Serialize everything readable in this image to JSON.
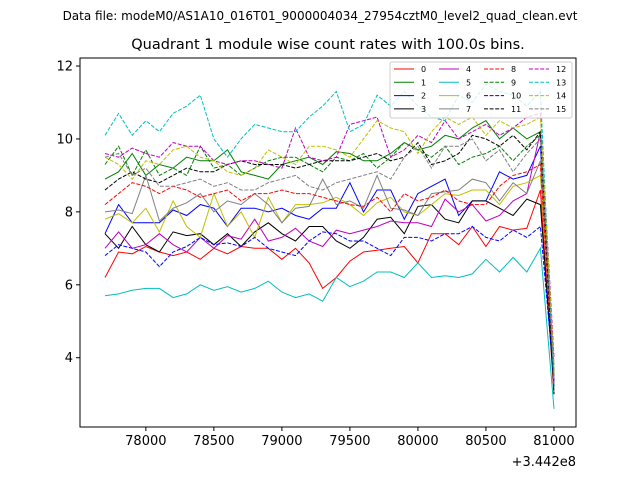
{
  "chart_data": {
    "type": "line",
    "suptitle": "Data file: modeM0/AS1A10_016T01_9000004034_27954cztM0_level2_quad_clean.evt",
    "title": "Quadrant 1 module wise count rates with 100.0s bins.",
    "xlabel": "",
    "ylabel": "",
    "x_offset_label": "+3.442e8",
    "xlim": [
      77516,
      81162
    ],
    "ylim": [
      2.1,
      12.22
    ],
    "xticks": [
      78000,
      78500,
      79000,
      79500,
      80000,
      80500,
      81000
    ],
    "xtick_labels": [
      "78000",
      "78500",
      "79000",
      "79500",
      "80000",
      "80500",
      "81000"
    ],
    "yticks": [
      4,
      6,
      8,
      10,
      12
    ],
    "ytick_labels": [
      "4",
      "6",
      "8",
      "10",
      "12"
    ],
    "grid": false,
    "legend_placement": "top-right",
    "x": [
      77700,
      77800,
      77900,
      78000,
      78100,
      78200,
      78300,
      78400,
      78500,
      78600,
      78700,
      78800,
      78900,
      79000,
      79100,
      79200,
      79300,
      79400,
      79500,
      79600,
      79700,
      79800,
      79900,
      80000,
      80100,
      80200,
      80300,
      80400,
      80500,
      80600,
      80700,
      80800,
      80900,
      81000
    ],
    "series": [
      {
        "name": "0",
        "color": "#ff0000",
        "dash": false,
        "values": [
          6.2,
          6.9,
          6.85,
          7.05,
          6.9,
          6.8,
          6.9,
          6.7,
          7.0,
          6.85,
          7.05,
          7.0,
          7.0,
          6.7,
          7.0,
          6.6,
          5.9,
          6.2,
          6.65,
          6.9,
          6.95,
          7.0,
          7.05,
          6.6,
          7.4,
          7.4,
          7.1,
          7.6,
          7.05,
          7.6,
          7.5,
          7.55,
          8.6,
          3.0
        ]
      },
      {
        "name": "1",
        "color": "#008000",
        "dash": false,
        "values": [
          8.9,
          9.1,
          9.6,
          9.0,
          9.3,
          9.2,
          9.5,
          9.4,
          9.4,
          9.7,
          9.1,
          9.0,
          8.9,
          9.3,
          9.4,
          9.5,
          9.3,
          9.65,
          9.6,
          9.4,
          9.4,
          9.6,
          9.9,
          9.7,
          9.8,
          10.1,
          10.0,
          10.3,
          10.5,
          10.0,
          10.3,
          10.0,
          10.2,
          3.5
        ]
      },
      {
        "name": "2",
        "color": "#0000ff",
        "dash": false,
        "values": [
          7.4,
          8.2,
          7.7,
          7.7,
          7.7,
          8.05,
          7.9,
          8.2,
          8.1,
          7.6,
          8.1,
          8.1,
          8.0,
          8.1,
          7.9,
          7.8,
          8.1,
          8.1,
          8.8,
          8.0,
          8.6,
          8.6,
          7.8,
          8.5,
          8.7,
          8.9,
          7.9,
          8.3,
          8.3,
          9.1,
          8.9,
          9.0,
          9.8,
          3.3
        ]
      },
      {
        "name": "3",
        "color": "#000000",
        "dash": false,
        "values": [
          7.4,
          7.0,
          7.6,
          7.1,
          6.9,
          7.45,
          7.35,
          7.4,
          7.1,
          7.4,
          7.05,
          7.45,
          7.7,
          7.4,
          7.2,
          7.6,
          7.6,
          7.2,
          7.0,
          7.3,
          7.8,
          7.85,
          7.4,
          8.15,
          8.2,
          7.8,
          7.7,
          8.3,
          8.3,
          8.1,
          7.9,
          8.35,
          8.2,
          3.2
        ]
      },
      {
        "name": "4",
        "color": "#bf00bf",
        "dash": false,
        "values": [
          7.0,
          7.45,
          7.0,
          7.1,
          7.4,
          7.1,
          6.9,
          7.3,
          7.0,
          7.35,
          7.25,
          7.8,
          7.2,
          7.3,
          7.55,
          7.2,
          7.05,
          7.5,
          7.4,
          7.5,
          7.6,
          7.75,
          7.7,
          7.7,
          7.6,
          8.35,
          8.0,
          8.2,
          7.75,
          7.9,
          8.3,
          8.5,
          10.2,
          3.3
        ]
      },
      {
        "name": "5",
        "color": "#00bfbf",
        "dash": false,
        "values": [
          5.7,
          5.75,
          5.85,
          5.9,
          5.9,
          5.65,
          5.75,
          6.0,
          5.85,
          5.95,
          5.8,
          5.9,
          6.1,
          5.8,
          5.65,
          5.75,
          5.55,
          6.2,
          5.95,
          6.1,
          6.35,
          6.35,
          6.2,
          6.6,
          6.2,
          6.25,
          6.2,
          6.3,
          6.7,
          6.35,
          6.75,
          6.35,
          7.0,
          2.6
        ]
      },
      {
        "name": "6",
        "color": "#bfbf00",
        "dash": false,
        "values": [
          7.8,
          7.95,
          7.7,
          8.1,
          7.45,
          8.3,
          7.6,
          7.3,
          8.5,
          7.6,
          8.0,
          7.3,
          8.4,
          7.7,
          8.2,
          8.2,
          8.25,
          8.4,
          8.2,
          7.9,
          8.25,
          8.4,
          8.0,
          7.9,
          8.2,
          8.5,
          8.45,
          8.6,
          8.6,
          8.2,
          8.7,
          8.8,
          9.0,
          3.6
        ]
      },
      {
        "name": "7",
        "color": "#808080",
        "dash": false,
        "values": [
          8.0,
          8.05,
          7.95,
          9.0,
          7.75,
          8.1,
          8.25,
          8.5,
          8.0,
          8.3,
          8.2,
          8.5,
          8.2,
          7.7,
          8.1,
          8.15,
          8.9,
          8.2,
          8.3,
          8.1,
          9.0,
          8.1,
          8.05,
          7.9,
          8.5,
          8.55,
          8.6,
          8.9,
          8.8,
          8.3,
          8.8,
          8.5,
          9.4,
          3.8
        ]
      },
      {
        "name": "8",
        "color": "#ff0000",
        "dash": true,
        "values": [
          8.2,
          8.5,
          8.8,
          8.7,
          8.5,
          8.7,
          8.6,
          8.4,
          8.5,
          8.6,
          8.3,
          8.5,
          8.5,
          8.6,
          8.5,
          8.5,
          8.4,
          8.3,
          8.2,
          8.15,
          8.4,
          8.0,
          8.5,
          8.3,
          8.4,
          8.6,
          8.3,
          8.2,
          8.2,
          8.7,
          9.0,
          9.1,
          9.3,
          3.2
        ]
      },
      {
        "name": "9",
        "color": "#008000",
        "dash": true,
        "values": [
          9.3,
          9.8,
          9.0,
          9.7,
          9.0,
          9.2,
          9.0,
          9.8,
          9.2,
          9.3,
          9.0,
          9.2,
          9.4,
          9.5,
          9.5,
          9.3,
          9.1,
          9.5,
          9.4,
          9.6,
          9.2,
          9.5,
          9.9,
          9.7,
          9.5,
          9.8,
          9.3,
          9.5,
          9.6,
          9.8,
          9.4,
          9.8,
          10.1,
          3.6
        ]
      },
      {
        "name": "10",
        "color": "#0000ff",
        "dash": true,
        "values": [
          6.8,
          7.1,
          7.0,
          6.9,
          6.5,
          6.9,
          7.05,
          7.3,
          7.1,
          7.15,
          7.05,
          7.3,
          7.0,
          6.9,
          6.8,
          7.2,
          7.45,
          7.4,
          7.2,
          7.2,
          7.0,
          6.8,
          7.3,
          7.3,
          7.2,
          7.4,
          7.4,
          7.6,
          7.3,
          7.2,
          7.5,
          7.3,
          7.6,
          3.4
        ]
      },
      {
        "name": "11",
        "color": "#000000",
        "dash": true,
        "values": [
          8.6,
          8.9,
          9.1,
          8.9,
          8.8,
          9.0,
          9.2,
          9.1,
          9.1,
          9.3,
          9.4,
          9.3,
          9.3,
          9.3,
          9.2,
          9.3,
          9.4,
          9.4,
          9.4,
          9.5,
          9.6,
          9.4,
          9.5,
          9.9,
          9.3,
          9.4,
          9.6,
          10.1,
          10.0,
          9.8,
          10.1,
          9.7,
          10.2,
          3.0
        ]
      },
      {
        "name": "12",
        "color": "#bf00bf",
        "dash": true,
        "values": [
          9.6,
          9.5,
          9.75,
          9.6,
          9.5,
          9.9,
          9.8,
          9.8,
          9.4,
          9.3,
          9.4,
          9.4,
          9.3,
          9.2,
          10.3,
          9.5,
          9.4,
          9.5,
          10.4,
          10.5,
          10.6,
          9.5,
          9.7,
          10.1,
          9.9,
          10.5,
          10.0,
          10.2,
          10.4,
          10.1,
          10.3,
          10.6,
          10.7,
          4.0
        ]
      },
      {
        "name": "13",
        "color": "#00bfbf",
        "dash": true,
        "values": [
          10.1,
          10.7,
          10.1,
          10.5,
          10.2,
          10.7,
          10.9,
          11.2,
          10.0,
          9.5,
          10.0,
          10.4,
          10.3,
          10.2,
          10.2,
          10.6,
          10.9,
          11.3,
          10.2,
          10.4,
          11.2,
          10.9,
          11.3,
          10.9,
          10.6,
          10.5,
          11.2,
          11.0,
          11.5,
          11.3,
          11.2,
          10.9,
          11.3,
          3.2
        ]
      },
      {
        "name": "14",
        "color": "#bfbf00",
        "dash": true,
        "values": [
          9.5,
          9.3,
          8.9,
          9.4,
          9.3,
          9.7,
          9.8,
          9.5,
          9.4,
          9.1,
          9.0,
          9.2,
          9.7,
          9.5,
          9.3,
          9.8,
          9.8,
          9.7,
          9.5,
          10.0,
          10.5,
          10.3,
          10.2,
          9.6,
          10.2,
          10.6,
          10.4,
          10.6,
          10.1,
          10.5,
          10.3,
          10.4,
          10.6,
          3.8
        ]
      },
      {
        "name": "15",
        "color": "#808080",
        "dash": true,
        "values": [
          9.5,
          9.6,
          9.0,
          9.2,
          8.7,
          8.7,
          8.8,
          8.9,
          8.7,
          8.8,
          8.6,
          8.6,
          8.8,
          8.9,
          9.0,
          8.7,
          8.6,
          8.8,
          8.9,
          9.0,
          9.1,
          8.9,
          9.5,
          9.8,
          9.2,
          9.8,
          9.8,
          10.0,
          9.4,
          9.7,
          9.1,
          9.6,
          10.0,
          3.5
        ]
      }
    ]
  }
}
